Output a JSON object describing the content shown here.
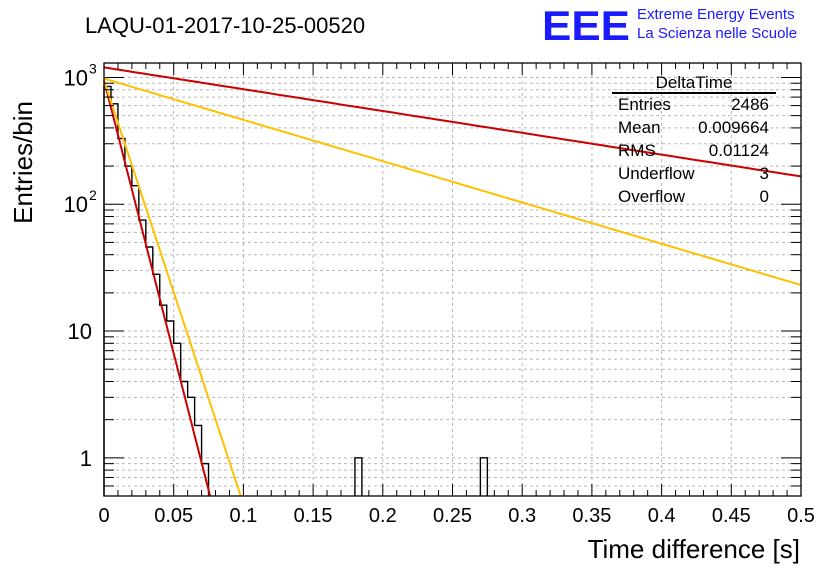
{
  "chart_data": {
    "type": "histogram",
    "title": "LAQU-01-2017-10-25-00520",
    "xlabel": "Time difference [s]",
    "ylabel": "Entries/bin",
    "xlim": [
      0,
      0.5
    ],
    "ylim": [
      0.5,
      1300
    ],
    "yscale": "log",
    "grid": true,
    "x_ticks": [
      0,
      0.05,
      0.1,
      0.15,
      0.2,
      0.25,
      0.3,
      0.35,
      0.4,
      0.45,
      0.5
    ],
    "x_tick_labels": [
      "0",
      "0.05",
      "0.1",
      "0.15",
      "0.2",
      "0.25",
      "0.3",
      "0.35",
      "0.4",
      "0.45",
      "0.5"
    ],
    "y_tick_labels": [
      {
        "value": 1000,
        "base": "10",
        "exp": "3"
      },
      {
        "value": 100,
        "base": "10",
        "exp": "2"
      },
      {
        "value": 10,
        "base": "10",
        "exp": ""
      },
      {
        "value": 1,
        "base": "1",
        "exp": ""
      }
    ],
    "histogram": {
      "name": "DeltaTime",
      "bin_width": 0.005,
      "bins": [
        {
          "x0": 0.0,
          "count": 850
        },
        {
          "x0": 0.005,
          "count": 620
        },
        {
          "x0": 0.01,
          "count": 330
        },
        {
          "x0": 0.015,
          "count": 200
        },
        {
          "x0": 0.02,
          "count": 140
        },
        {
          "x0": 0.025,
          "count": 75
        },
        {
          "x0": 0.03,
          "count": 46
        },
        {
          "x0": 0.035,
          "count": 28
        },
        {
          "x0": 0.04,
          "count": 16
        },
        {
          "x0": 0.045,
          "count": 12
        },
        {
          "x0": 0.05,
          "count": 8
        },
        {
          "x0": 0.055,
          "count": 4
        },
        {
          "x0": 0.06,
          "count": 3
        },
        {
          "x0": 0.065,
          "count": 1.8
        },
        {
          "x0": 0.07,
          "count": 0.9
        },
        {
          "x0": 0.18,
          "count": 1
        },
        {
          "x0": 0.27,
          "count": 1
        }
      ]
    },
    "fits": [
      {
        "name": "red-steep-fit",
        "color": "#cc0000",
        "x0": 0.0,
        "y0": 950,
        "lambda": 99.2,
        "x_end": 0.08
      },
      {
        "name": "yellow-steep-fit",
        "color": "#ffc000",
        "x0": 0.0,
        "y0": 950,
        "lambda": 77.0,
        "x_end": 0.1
      },
      {
        "name": "yellow-shallow-fit",
        "color": "#ffc000",
        "x0": 0.0,
        "y0": 980,
        "lambda": 7.5,
        "x_end": 0.5
      },
      {
        "name": "red-shallow-fit",
        "color": "#cc0000",
        "x0": 0.0,
        "y0": 1200,
        "lambda": 3.96,
        "x_end": 0.5
      }
    ],
    "stats_box": {
      "title": "DeltaTime",
      "rows": [
        {
          "label": "Entries",
          "value": "2486"
        },
        {
          "label": "Mean",
          "value": "0.009664"
        },
        {
          "label": "RMS",
          "value": "0.01124"
        },
        {
          "label": "Underflow",
          "value": "3"
        },
        {
          "label": "Overflow",
          "value": "0"
        }
      ]
    },
    "logo": {
      "mark": "EEE",
      "line1": "Extreme Energy Events",
      "line2": "La Scienza nelle Scuole",
      "color": "#1a1aff"
    }
  }
}
